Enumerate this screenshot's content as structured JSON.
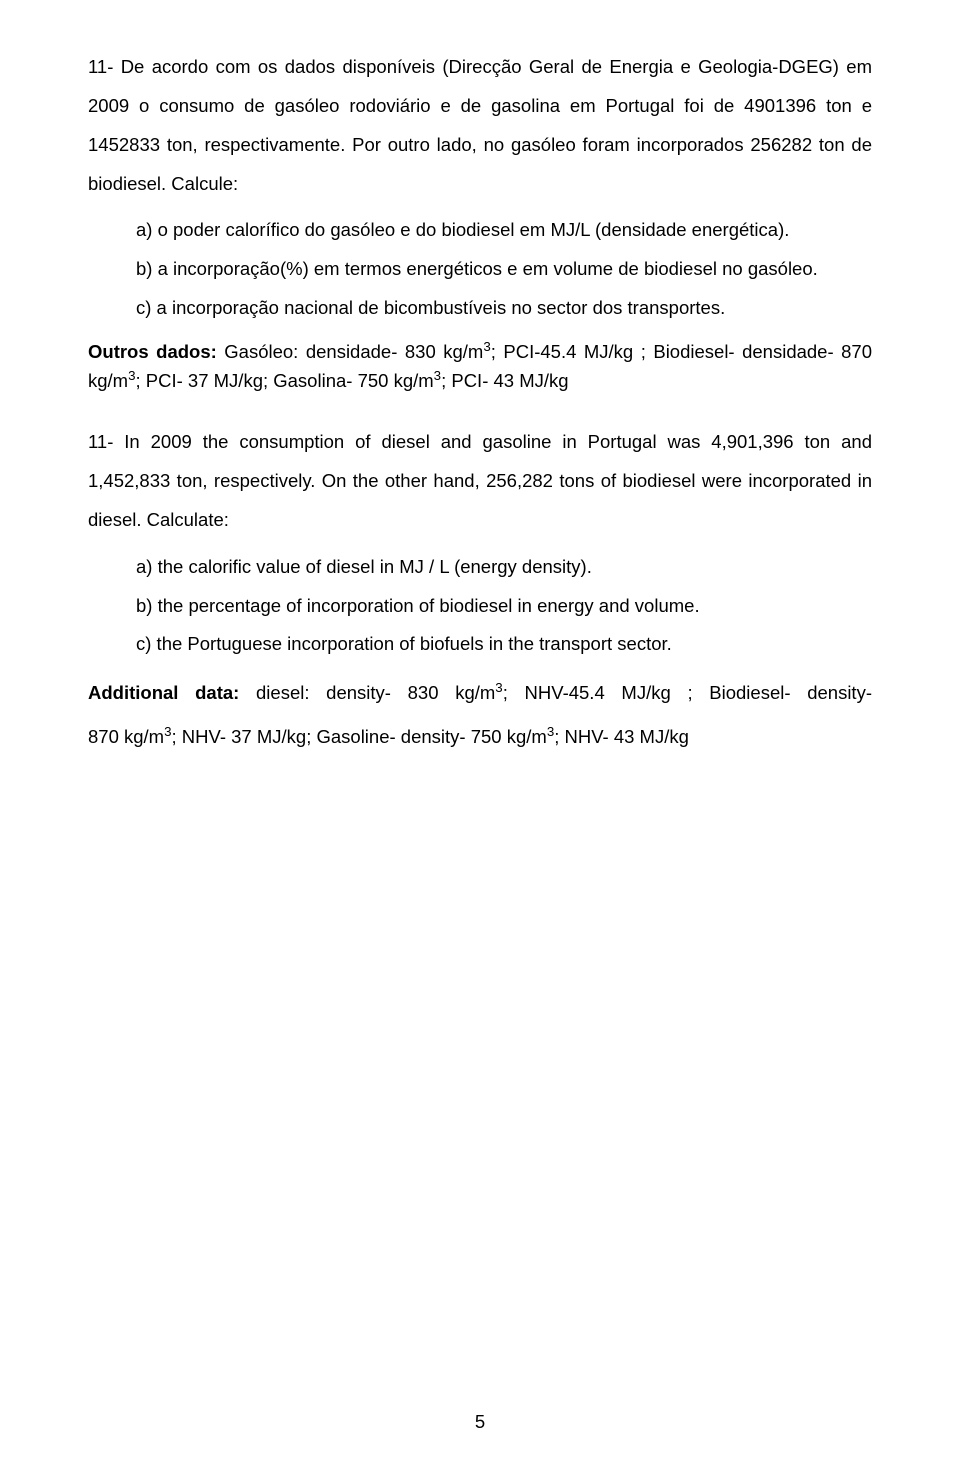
{
  "q11pt": {
    "intro": "11- De acordo com os dados disponíveis (Direcção Geral de Energia e Geologia-DGEG) em 2009 o consumo de gasóleo rodoviário e de gasolina em Portugal foi de 4901396 ton e 1452833 ton, respectivamente. Por outro lado, no gasóleo foram incorporados 256282 ton de biodiesel.  Calcule:",
    "a": "a) o poder calorífico do gasóleo e do biodiesel em MJ/L (densidade energética).",
    "b": "b) a incorporação(%) em termos energéticos e em volume de biodiesel no gasóleo.",
    "c": "c) a incorporação nacional de bicombustíveis no sector dos transportes.",
    "dados_label": "Outros dados:",
    "dados_text_1": " Gasóleo: densidade- 830 kg/m",
    "dados_text_2": "; PCI-45.4 MJ/kg ; Biodiesel- densidade- 870 kg/m",
    "dados_text_3": "; PCI- 37 MJ/kg; Gasolina- 750 kg/m",
    "dados_text_4": "; PCI- 43 MJ/kg"
  },
  "q11en": {
    "intro": "11- In 2009 the consumption of diesel and gasoline in Portugal was 4,901,396 ton and 1,452,833 ton, respectively. On the other hand, 256,282 tons of biodiesel were incorporated in diesel. Calculate:",
    "a": "a)  the calorific value of diesel in MJ / L (energy density).",
    "b": "b)  the percentage of incorporation of biodiesel in energy and volume.",
    "c": "c)  the Portuguese incorporation of biofuels in the transport sector.",
    "add_label": "Additional data:",
    "add_1_a": " diesel: density- 830 kg/m",
    "add_1_b": "; NHV-45.4 MJ/kg ; Biodiesel- density-",
    "add_2_a": "870 kg/m",
    "add_2_b": "; NHV- 37 MJ/kg; Gasoline- density- 750 kg/m",
    "add_2_c": "; NHV- 43 MJ/kg"
  },
  "sup3": "3",
  "page_number": "5"
}
